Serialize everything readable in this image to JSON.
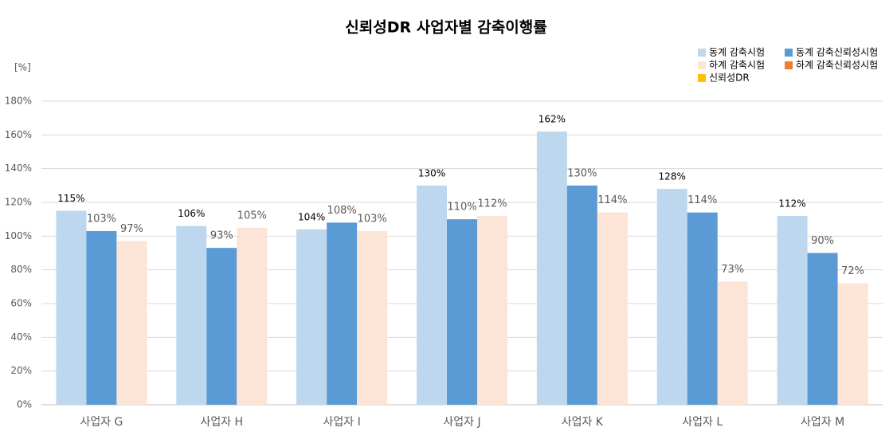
{
  "chart_data": {
    "type": "bar",
    "title": "신뢰성DR 사업자별 감축이행률",
    "y_label": "[%]",
    "categories": [
      "사업자 G",
      "사업자 H",
      "사업자 I",
      "사업자 J",
      "사업자 K",
      "사업자 L",
      "사업자 M"
    ],
    "series": [
      {
        "name": "동계 감축시험",
        "color": "#bdd7ee",
        "values": [
          115,
          106,
          104,
          130,
          162,
          128,
          112
        ],
        "value_labels": [
          "115%",
          "106%",
          "104%",
          "130%",
          "162%",
          "128%",
          "112%"
        ]
      },
      {
        "name": "동계 감축신뢰성시험",
        "color": "#5b9bd5",
        "values": [
          103,
          93,
          108,
          110,
          130,
          114,
          90
        ],
        "value_labels": [
          "103%",
          "93%",
          "108%",
          "110%",
          "130%",
          "114%",
          "90%"
        ]
      },
      {
        "name": "하계 감축시험",
        "color": "#fce4d6",
        "values": [
          97,
          105,
          103,
          112,
          114,
          73,
          72
        ],
        "value_labels": [
          "97%",
          "105%",
          "103%",
          "112%",
          "114%",
          "73%",
          "72%"
        ]
      },
      {
        "name": "하계 감축신뢰성시험",
        "color": "#ed7d31",
        "values": [
          null,
          null,
          null,
          null,
          null,
          null,
          null
        ]
      },
      {
        "name": "신뢰성DR",
        "color": "#ffc000",
        "values": [
          null,
          null,
          null,
          null,
          null,
          null,
          null
        ]
      }
    ],
    "ylim": [
      0,
      180
    ],
    "yticks": [
      {
        "value": 0,
        "label": "0%"
      },
      {
        "value": 20,
        "label": "20%"
      },
      {
        "value": 40,
        "label": "40%"
      },
      {
        "value": 60,
        "label": "60%"
      },
      {
        "value": 80,
        "label": "80%"
      },
      {
        "value": 100,
        "label": "100%"
      },
      {
        "value": 120,
        "label": "120%"
      },
      {
        "value": 140,
        "label": "140%"
      },
      {
        "value": 160,
        "label": "160%"
      },
      {
        "value": 180,
        "label": "180%"
      }
    ],
    "grid": true,
    "legend": "top-right"
  }
}
